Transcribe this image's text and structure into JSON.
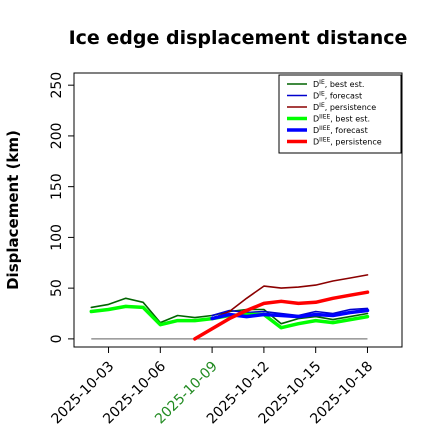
{
  "chart_data": {
    "type": "line",
    "title": "Ice edge displacement distance",
    "xlabel": "",
    "ylabel": "Displacement (km)",
    "ylim": [
      -8,
      262
    ],
    "yticks": [
      0,
      50,
      100,
      150,
      200,
      250
    ],
    "xlim": [
      "2025-10-01",
      "2025-10-20"
    ],
    "xticks": [
      "2025-10-03",
      "2025-10-06",
      "2025-10-09",
      "2025-10-12",
      "2025-10-15",
      "2025-10-18"
    ],
    "highlighted_xtick": "2025-10-09",
    "highlight_color": "#228b22",
    "grid": false,
    "legend_position": "top-right",
    "baseline": {
      "x": [
        "2025-10-02",
        "2025-10-18"
      ],
      "y": 0,
      "color": "#7f7f7f"
    },
    "series": [
      {
        "name": "D^IE, best est.",
        "color": "#006400",
        "thick": false,
        "x": [
          "2025-10-02",
          "2025-10-03",
          "2025-10-04",
          "2025-10-05",
          "2025-10-06",
          "2025-10-07",
          "2025-10-08",
          "2025-10-09",
          "2025-10-10",
          "2025-10-11",
          "2025-10-12",
          "2025-10-13",
          "2025-10-14",
          "2025-10-15",
          "2025-10-16",
          "2025-10-17",
          "2025-10-18"
        ],
        "y": [
          31,
          34,
          40,
          36,
          16,
          23,
          21,
          23,
          27,
          29,
          29,
          15,
          20,
          22,
          19,
          22,
          25
        ]
      },
      {
        "name": "D^IE, forecast",
        "color": "#0000cd",
        "thick": false,
        "x": [
          "2025-10-09",
          "2025-10-10",
          "2025-10-11",
          "2025-10-12",
          "2025-10-13",
          "2025-10-14",
          "2025-10-15",
          "2025-10-16",
          "2025-10-17",
          "2025-10-18"
        ],
        "y": [
          23,
          28,
          26,
          27,
          25,
          23,
          27,
          25,
          29,
          30
        ]
      },
      {
        "name": "D^IE, persistence",
        "color": "#8b0000",
        "thick": false,
        "x": [
          "2025-10-09",
          "2025-10-10",
          "2025-10-11",
          "2025-10-12",
          "2025-10-13",
          "2025-10-14",
          "2025-10-15",
          "2025-10-16",
          "2025-10-17",
          "2025-10-18"
        ],
        "y": [
          20,
          27,
          40,
          52,
          50,
          51,
          53,
          57,
          60,
          63
        ]
      },
      {
        "name": "D^IIEE, best est.",
        "color": "#00ff00",
        "thick": true,
        "x": [
          "2025-10-02",
          "2025-10-03",
          "2025-10-04",
          "2025-10-05",
          "2025-10-06",
          "2025-10-07",
          "2025-10-08",
          "2025-10-09",
          "2025-10-10",
          "2025-10-11",
          "2025-10-12",
          "2025-10-13",
          "2025-10-14",
          "2025-10-15",
          "2025-10-16",
          "2025-10-17",
          "2025-10-18"
        ],
        "y": [
          27,
          29,
          32,
          31,
          14,
          18,
          18,
          20,
          23,
          24,
          24,
          11,
          15,
          18,
          16,
          19,
          22
        ]
      },
      {
        "name": "D^IIEE, forecast",
        "color": "#0000ff",
        "thick": true,
        "x": [
          "2025-10-09",
          "2025-10-10",
          "2025-10-11",
          "2025-10-12",
          "2025-10-13",
          "2025-10-14",
          "2025-10-15",
          "2025-10-16",
          "2025-10-17",
          "2025-10-18"
        ],
        "y": [
          20,
          24,
          22,
          24,
          23,
          22,
          24,
          23,
          26,
          28
        ]
      },
      {
        "name": "D^IIEE, persistence",
        "color": "#ff0000",
        "thick": true,
        "x": [
          "2025-10-08",
          "2025-10-09",
          "2025-10-10",
          "2025-10-11",
          "2025-10-12",
          "2025-10-13",
          "2025-10-14",
          "2025-10-15",
          "2025-10-16",
          "2025-10-17",
          "2025-10-18"
        ],
        "y": [
          0,
          10,
          20,
          28,
          35,
          37,
          35,
          36,
          40,
          43,
          46
        ]
      }
    ]
  }
}
